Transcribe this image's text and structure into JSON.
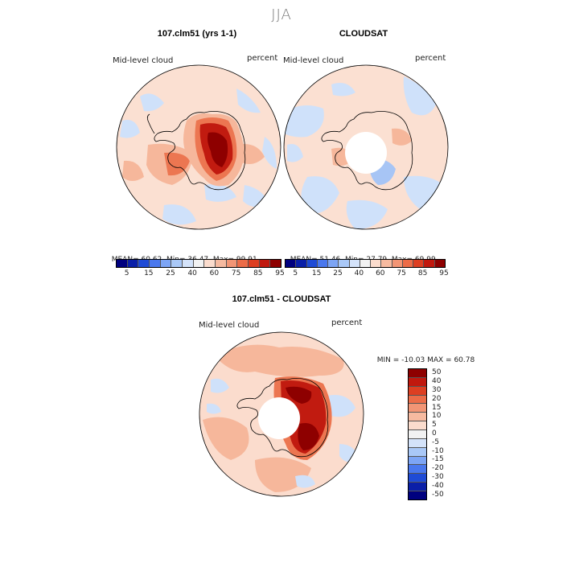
{
  "figure": {
    "season_title": "JJA"
  },
  "panels": {
    "model": {
      "title": "107.clm51 (yrs 1-1)",
      "variable_label": "Mid-level cloud",
      "units_label": "percent",
      "stats": {
        "mean": "60.62",
        "min": "36.47",
        "max": "99.91"
      },
      "colorbar_ticks": [
        "5",
        "15",
        "25",
        "40",
        "60",
        "75",
        "85",
        "95"
      ]
    },
    "obs": {
      "title": "CLOUDSAT",
      "variable_label": "Mid-level cloud",
      "units_label": "percent",
      "stats": {
        "mean": "51.46",
        "min": "27.79",
        "max": "69.99"
      },
      "colorbar_ticks": [
        "5",
        "15",
        "25",
        "40",
        "60",
        "75",
        "85",
        "95"
      ]
    },
    "diff": {
      "title": "107.clm51 - CLOUDSAT",
      "variable_label": "Mid-level cloud",
      "units_label": "percent",
      "stats": {
        "min": "-10.03",
        "max": "60.78"
      },
      "colorbar_ticks": [
        "50",
        "40",
        "30",
        "20",
        "15",
        "10",
        "5",
        "0",
        "-5",
        "-10",
        "-15",
        "-20",
        "-30",
        "-40",
        "-50"
      ]
    }
  },
  "labels": {
    "mean_prefix": "MEAN=",
    "min_prefix": "Min=",
    "max_prefix": "Max=",
    "diff_min_prefix": "MIN =",
    "diff_max_prefix": "MAX ="
  },
  "colors": {
    "abs_scale": [
      "#00007f",
      "#0a1fa8",
      "#1f4bd6",
      "#4a78ee",
      "#7da5f5",
      "#a9c8f7",
      "#d4e3fa",
      "#f2f2f2",
      "#fbdccd",
      "#f6baa0",
      "#f29575",
      "#ec6c48",
      "#dd3f22",
      "#c1180e",
      "#8e0000"
    ],
    "diff_scale": [
      "#8e0000",
      "#c1180e",
      "#dd3f22",
      "#ec6c48",
      "#f29575",
      "#f6baa0",
      "#fbdccd",
      "#f2f2f2",
      "#d4e3fa",
      "#a9c8f7",
      "#7da5f5",
      "#4a78ee",
      "#1f4bd6",
      "#0a1fa8",
      "#00007f"
    ],
    "ocean_fill": "#fbe0d2",
    "light_blue": "#cfe1fa",
    "mid_blue": "#a7c5f5",
    "light_red": "#f6b79b",
    "mid_red": "#ec7651",
    "dark_red": "#c11b10",
    "deep_red": "#8e0000"
  },
  "map_data": {
    "projection": "south-polar-stereographic",
    "region": "Antarctica",
    "obs_has_polar_gap": true,
    "diff_has_polar_gap": true
  }
}
